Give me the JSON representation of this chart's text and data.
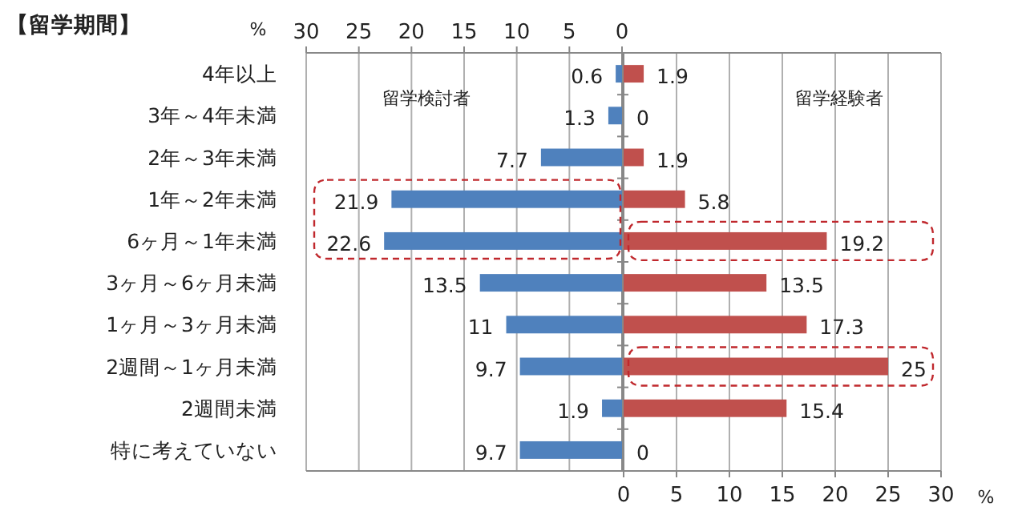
{
  "chart_data": [
    {
      "type": "bar",
      "orientation": "horizontal",
      "title": "【留学期間】",
      "x2label": "%",
      "categories": [
        "4年以上",
        "3年～4年未満",
        "2年～3年未満",
        "1年～2年未満",
        "6ヶ月～1年未満",
        "3ヶ月～6ヶ月未満",
        "1ヶ月～3ヶ月未満",
        "2週間～1ヶ月未満",
        "2週間未満",
        "特に考えていない"
      ],
      "x2lim": [
        30,
        0
      ],
      "x2ticks": [
        30,
        25,
        20,
        15,
        10,
        5,
        0
      ],
      "grid": "x",
      "data_labels": true,
      "legend": false,
      "series": [
        {
          "name": "留学検討者",
          "color": "#4f81bd",
          "values": [
            0.6,
            1.3,
            7.7,
            21.9,
            22.6,
            13.5,
            11,
            9.7,
            1.9,
            9.7
          ]
        }
      ]
    },
    {
      "type": "bar",
      "orientation": "horizontal",
      "xlabel": "%",
      "categories": [
        null,
        null,
        null,
        null,
        null,
        null,
        null,
        null,
        null,
        null
      ],
      "xlim": [
        0,
        30
      ],
      "xticks": [
        0,
        5,
        10,
        15,
        20,
        25,
        30
      ],
      "grid": "x",
      "data_labels": true,
      "legend": false,
      "tick_labels": "x",
      "series": [
        {
          "name": "留学経験者",
          "color": "#c0504d",
          "values": [
            1.9,
            0,
            1.9,
            5.8,
            19.2,
            13.5,
            17.3,
            25,
            15.4,
            0
          ]
        }
      ]
    }
  ]
}
